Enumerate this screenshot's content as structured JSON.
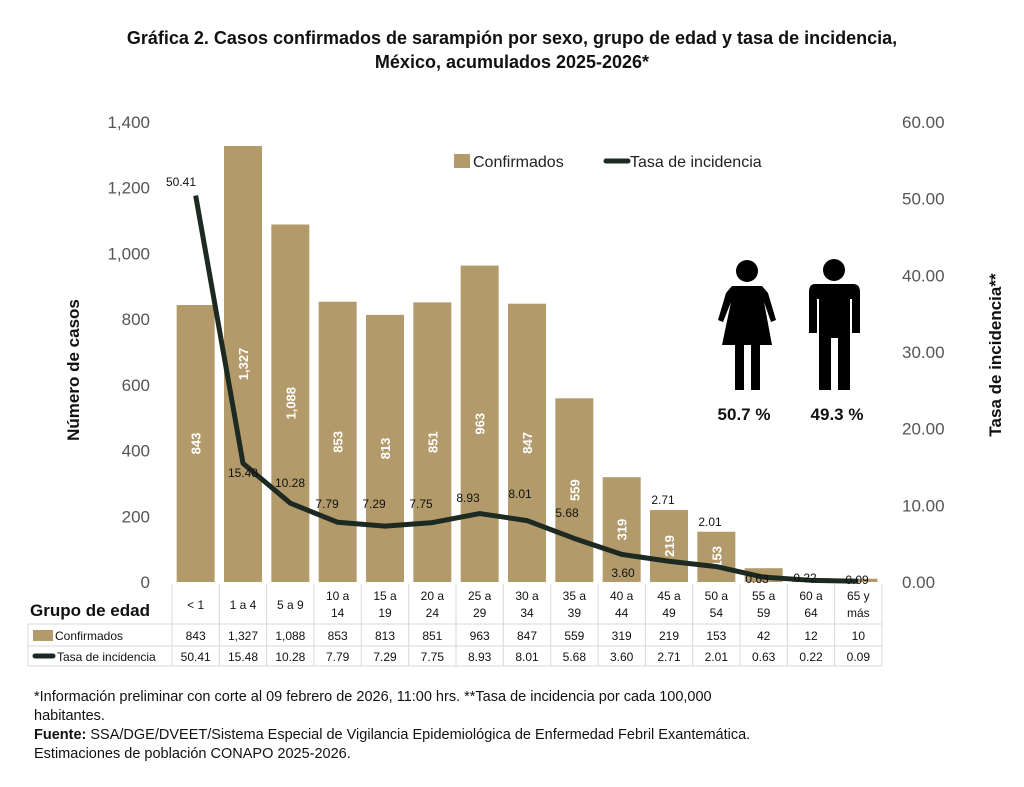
{
  "chart_data": {
    "type": "bar+line",
    "title_line1": "Gráfica 2. Casos confirmados  de sarampión por sexo, grupo de edad y tasa de incidencia,",
    "title_line2": "México, acumulados 2025-2026*",
    "ylabel": "Número de casos",
    "y2label": "Tasa de incidencia**",
    "ylim": [
      0,
      1400
    ],
    "y2lim": [
      0,
      60
    ],
    "yticks": [
      "0",
      "200",
      "400",
      "600",
      "800",
      "1,000",
      "1,200",
      "1,400"
    ],
    "y2ticks": [
      "0.00",
      "10.00",
      "20.00",
      "30.00",
      "40.00",
      "50.00",
      "60.00"
    ],
    "xlabel": "Grupo de edad",
    "categories": [
      [
        "< 1"
      ],
      [
        "1 a 4"
      ],
      [
        "5 a 9"
      ],
      [
        "10 a",
        "14"
      ],
      [
        "15 a",
        "19"
      ],
      [
        "20 a",
        "24"
      ],
      [
        "25 a",
        "29"
      ],
      [
        "30 a",
        "34"
      ],
      [
        "35 a",
        "39"
      ],
      [
        "40 a",
        "44"
      ],
      [
        "45 a",
        "49"
      ],
      [
        "50 a",
        "54"
      ],
      [
        "55 a",
        "59"
      ],
      [
        "60 a",
        "64"
      ],
      [
        "65 y",
        "más"
      ]
    ],
    "series": [
      {
        "name": "Confirmados",
        "type": "bar",
        "color": "#b39a6b",
        "values": [
          843,
          1327,
          1088,
          853,
          813,
          851,
          963,
          847,
          559,
          319,
          219,
          153,
          42,
          12,
          10
        ],
        "labels": [
          "843",
          "1,327",
          "1,088",
          "853",
          "813",
          "851",
          "963",
          "847",
          "559",
          "319",
          "219",
          "153",
          "42",
          "12",
          "10"
        ]
      },
      {
        "name": "Tasa de incidencia",
        "type": "line",
        "axis": "right",
        "color": "#1c2a22",
        "values": [
          50.41,
          15.48,
          10.28,
          7.79,
          7.29,
          7.75,
          8.93,
          8.01,
          5.68,
          3.6,
          2.71,
          2.01,
          0.63,
          0.22,
          0.09
        ],
        "labels": [
          "50.41",
          "15.48",
          "10.28",
          "7.79",
          "7.29",
          "7.75",
          "8.93",
          "8.01",
          "5.68",
          "3.60",
          "2.71",
          "2.01",
          "0.63",
          "0.22",
          "0.09"
        ]
      }
    ],
    "legend": "top-center",
    "grid": false,
    "sex": {
      "female_pct": "50.7 %",
      "male_pct": "49.3 %"
    }
  },
  "footnotes": {
    "line1": "*Información preliminar con corte al 09 febrero de 2026, 11:00 hrs. **Tasa de incidencia por cada 100,000",
    "line2": "habitantes.",
    "source_label": "Fuente:",
    "source_text": " SSA/DGE/DVEET/Sistema Especial de Vigilancia Epidemiológica de Enfermedad Febril Exantemática.",
    "line4": "Estimaciones de población CONAPO 2025-2026."
  }
}
